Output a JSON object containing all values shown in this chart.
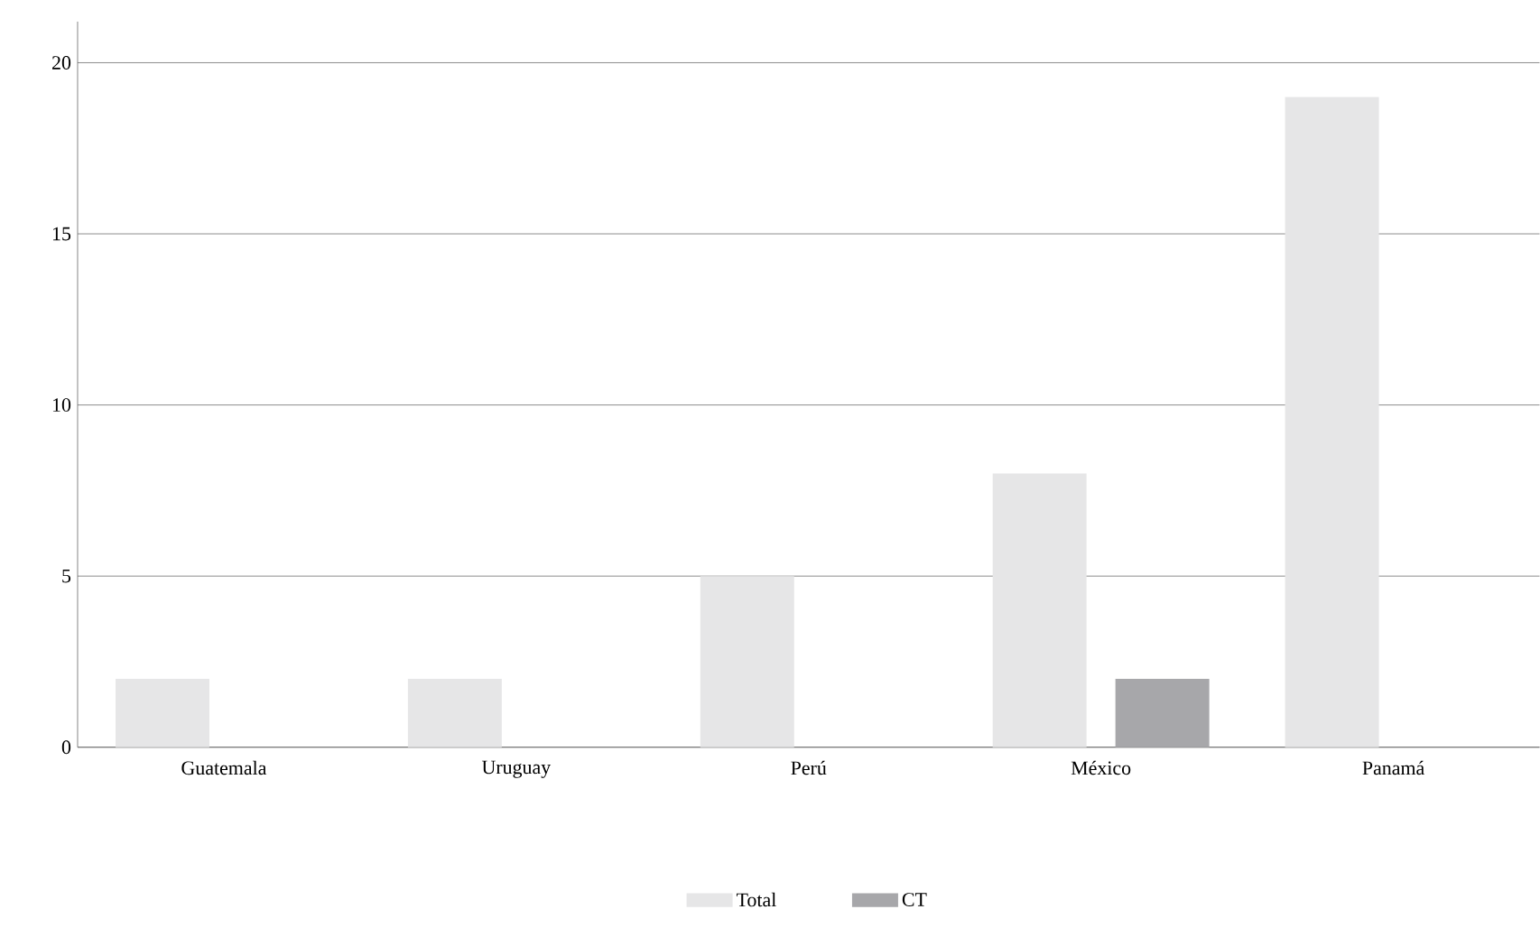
{
  "chart_data": {
    "type": "bar",
    "categories": [
      "Guatemala",
      "Uruguay",
      "Perú",
      "México",
      "Panamá"
    ],
    "series": [
      {
        "name": "Total",
        "color": "#e6e6e7",
        "values": [
          2,
          2,
          5,
          8,
          19
        ]
      },
      {
        "name": "CT",
        "color": "#a7a7aa",
        "values": [
          0,
          0,
          0,
          2,
          0
        ]
      }
    ],
    "ylim": [
      0,
      21.2
    ],
    "yticks": [
      0,
      5,
      10,
      15,
      20
    ],
    "grid": "y",
    "legend": "bottom"
  }
}
